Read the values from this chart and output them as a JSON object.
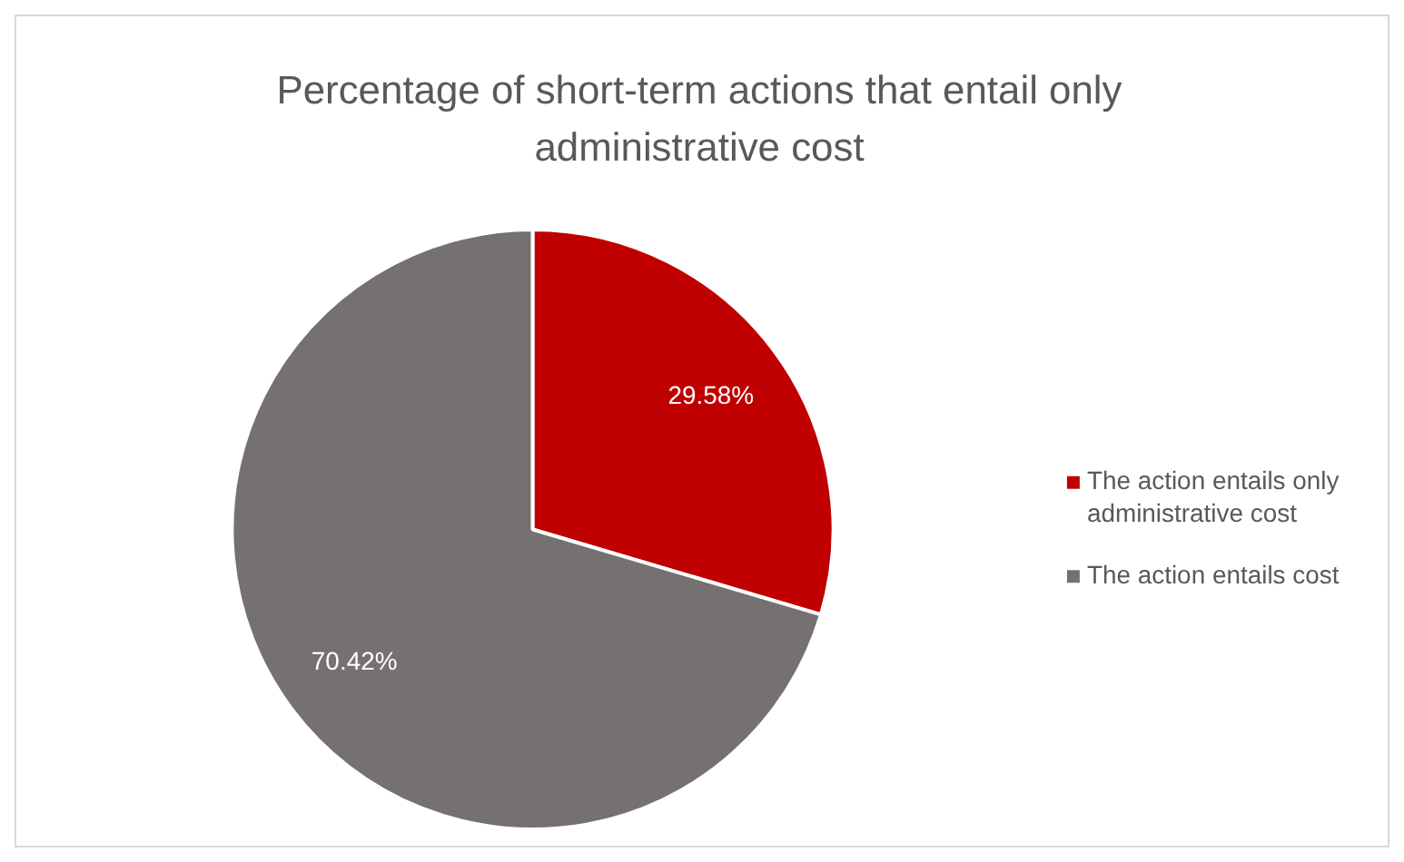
{
  "chart_data": {
    "type": "pie",
    "title": "Percentage of short-term actions that entail only administrative cost",
    "categories": [
      "The action entails only administrative cost",
      "The action entails cost"
    ],
    "values": [
      29.58,
      70.42
    ],
    "colors": [
      "#c00000",
      "#767171"
    ],
    "value_labels": [
      "29.58%",
      "70.42%"
    ],
    "legend": "right"
  }
}
